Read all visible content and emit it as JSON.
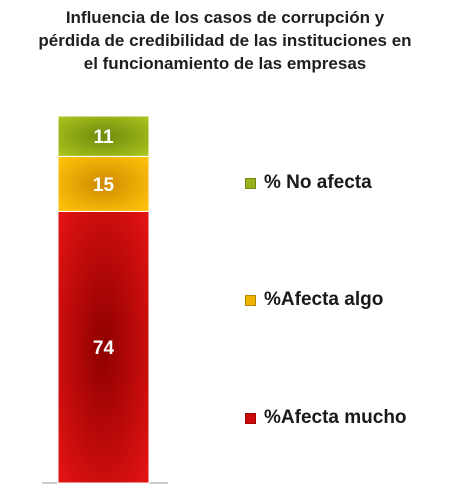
{
  "title_lines": [
    "Influencia de los casos de corrupción y",
    "pérdida de credibilidad de las instituciones en",
    "el funcionamiento de las empresas"
  ],
  "chart_data": {
    "type": "bar",
    "stacked": true,
    "title": "Influencia de los casos de corrupción y pérdida de credibilidad de las instituciones en el funcionamiento de las empresas",
    "categories": [
      ""
    ],
    "series": [
      {
        "name": "%Afecta mucho",
        "values": [
          74
        ],
        "color": "#cc0a0a"
      },
      {
        "name": "%Afecta algo",
        "values": [
          15
        ],
        "color": "#f0b400"
      },
      {
        "name": "% No afecta",
        "values": [
          11
        ],
        "color": "#99b31c"
      }
    ],
    "ylim": [
      0,
      100
    ],
    "grid": false,
    "legend_position": "right"
  }
}
